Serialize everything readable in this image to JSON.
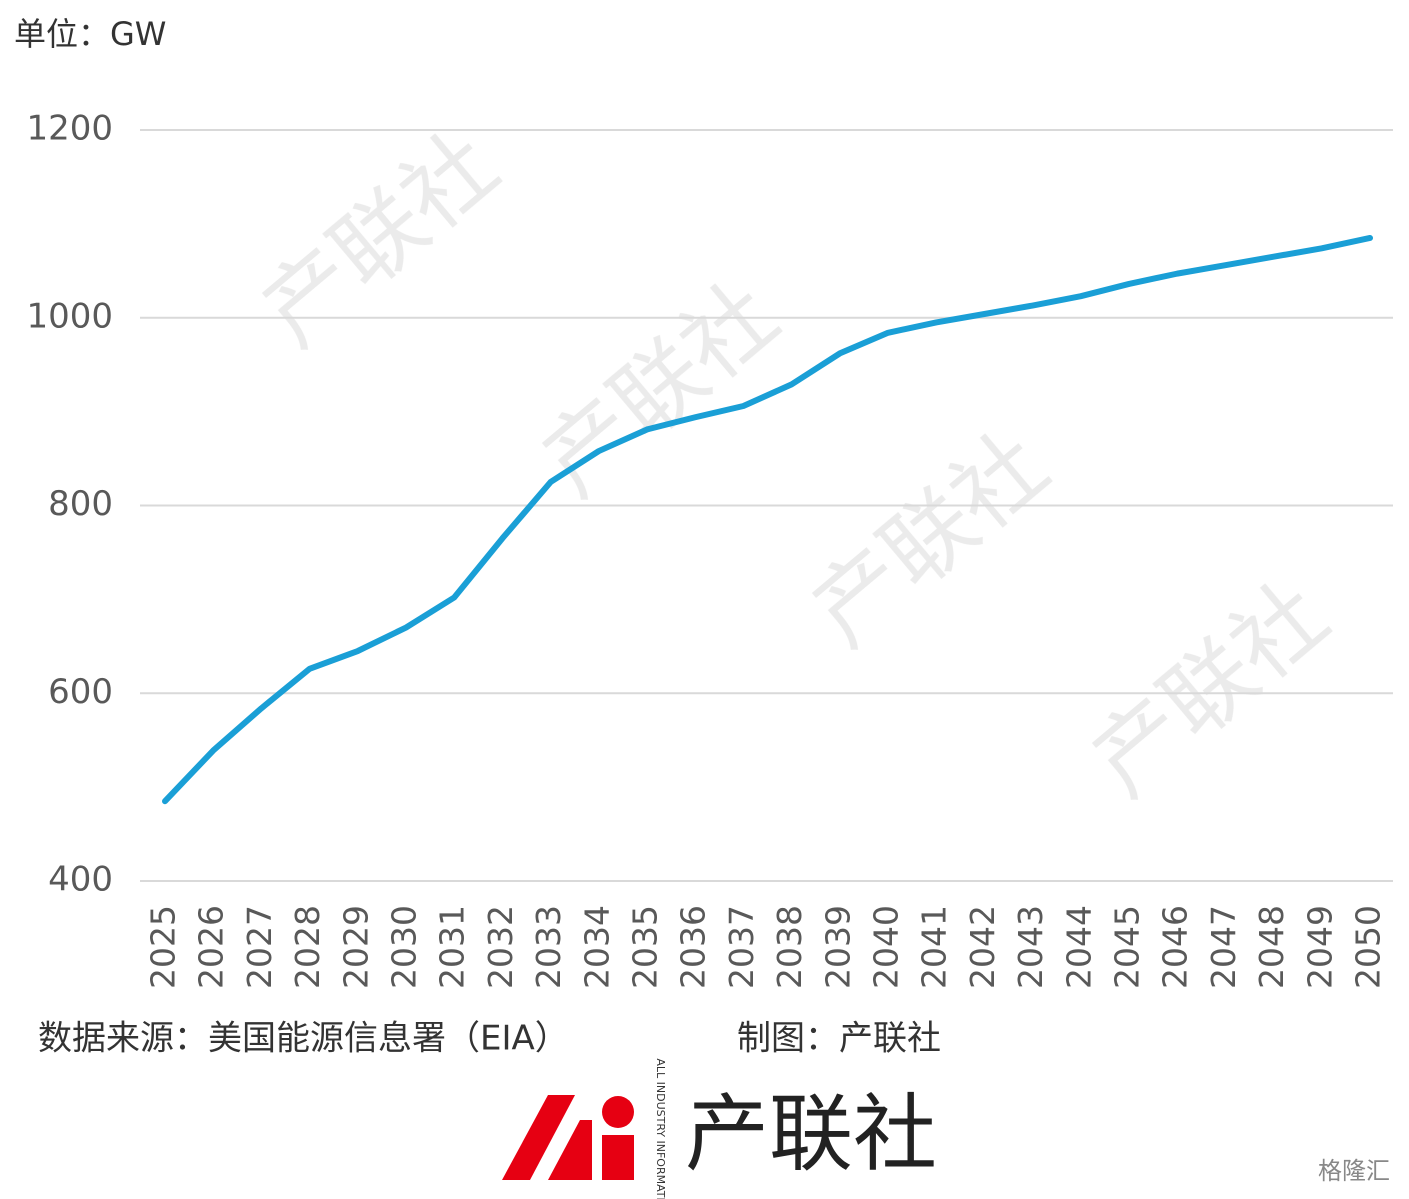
{
  "chart_data": {
    "type": "line",
    "unit_label": "单位：GW",
    "categories": [
      "2025",
      "2026",
      "2027",
      "2028",
      "2029",
      "2030",
      "2031",
      "2032",
      "2033",
      "2034",
      "2035",
      "2036",
      "2037",
      "2038",
      "2039",
      "2040",
      "2041",
      "2042",
      "2043",
      "2044",
      "2045",
      "2046",
      "2047",
      "2048",
      "2049",
      "2050"
    ],
    "series": [
      {
        "color": "#1a9fd6",
        "values": [
          485,
          539,
          584,
          626,
          645,
          670,
          702,
          765,
          825,
          858,
          881,
          894,
          906,
          929,
          962,
          984,
          995,
          1004,
          1013,
          1023,
          1036,
          1047,
          1056,
          1065,
          1074,
          1085
        ]
      }
    ],
    "ylim": [
      400,
      1200
    ],
    "yticks": [
      400,
      600,
      800,
      1000,
      1200
    ],
    "grid": true
  },
  "footer": {
    "source": "数据来源：美国能源信息署（EIA）",
    "credit": "制图：产联社",
    "logo_name": "产联社",
    "logo_tagline": "ALL INDUSTRY INFORMATION",
    "watermark": "产联社",
    "corner_mark": "格隆汇"
  }
}
